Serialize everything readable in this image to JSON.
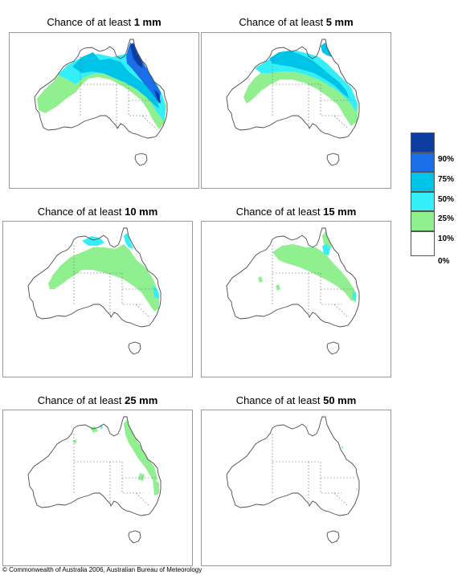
{
  "panels": [
    {
      "prefix": "Chance of at least ",
      "amount": "1 mm"
    },
    {
      "prefix": "Chance of at least ",
      "amount": "5 mm"
    },
    {
      "prefix": "Chance of at least ",
      "amount": "10 mm"
    },
    {
      "prefix": "Chance of at least ",
      "amount": "15 mm"
    },
    {
      "prefix": "Chance of at least ",
      "amount": "25 mm"
    },
    {
      "prefix": "Chance of at least ",
      "amount": "50 mm"
    }
  ],
  "legend": {
    "labels": [
      "90%",
      "75%",
      "50%",
      "25%",
      "10%",
      "0%"
    ],
    "colors": [
      "#0d3da0",
      "#1a6ee8",
      "#00c3e8",
      "#33f0f8",
      "#90f090",
      "#ffffff"
    ]
  },
  "copyright": "© Commonwealth of Australia 2006, Australian Bureau of Meteorology"
}
